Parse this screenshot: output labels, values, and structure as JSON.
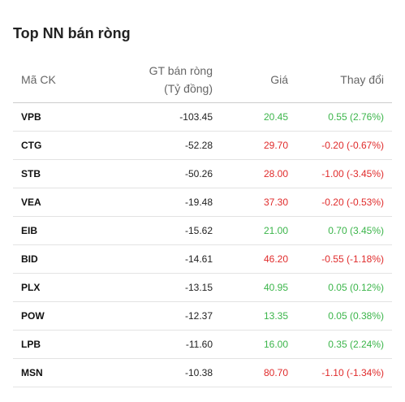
{
  "title": "Top NN bán ròng",
  "columns": {
    "symbol": "Mã CK",
    "value_line1": "GT bán ròng",
    "value_line2": "(Tỷ đồng)",
    "price": "Giá",
    "change": "Thay đổi"
  },
  "rows": [
    {
      "symbol": "VPB",
      "value": "-103.45",
      "price": "20.45",
      "change": "0.55 (2.76%)",
      "dir": "up"
    },
    {
      "symbol": "CTG",
      "value": "-52.28",
      "price": "29.70",
      "change": "-0.20 (-0.67%)",
      "dir": "down"
    },
    {
      "symbol": "STB",
      "value": "-50.26",
      "price": "28.00",
      "change": "-1.00 (-3.45%)",
      "dir": "down"
    },
    {
      "symbol": "VEA",
      "value": "-19.48",
      "price": "37.30",
      "change": "-0.20 (-0.53%)",
      "dir": "down"
    },
    {
      "symbol": "EIB",
      "value": "-15.62",
      "price": "21.00",
      "change": "0.70 (3.45%)",
      "dir": "up"
    },
    {
      "symbol": "BID",
      "value": "-14.61",
      "price": "46.20",
      "change": "-0.55 (-1.18%)",
      "dir": "down"
    },
    {
      "symbol": "PLX",
      "value": "-13.15",
      "price": "40.95",
      "change": "0.05 (0.12%)",
      "dir": "up"
    },
    {
      "symbol": "POW",
      "value": "-12.37",
      "price": "13.35",
      "change": "0.05 (0.38%)",
      "dir": "up"
    },
    {
      "symbol": "LPB",
      "value": "-11.60",
      "price": "16.00",
      "change": "0.35 (2.24%)",
      "dir": "up"
    },
    {
      "symbol": "MSN",
      "value": "-10.38",
      "price": "80.70",
      "change": "-1.10 (-1.34%)",
      "dir": "down"
    }
  ],
  "colors": {
    "up": "#3bb54a",
    "down": "#e02b2b"
  }
}
